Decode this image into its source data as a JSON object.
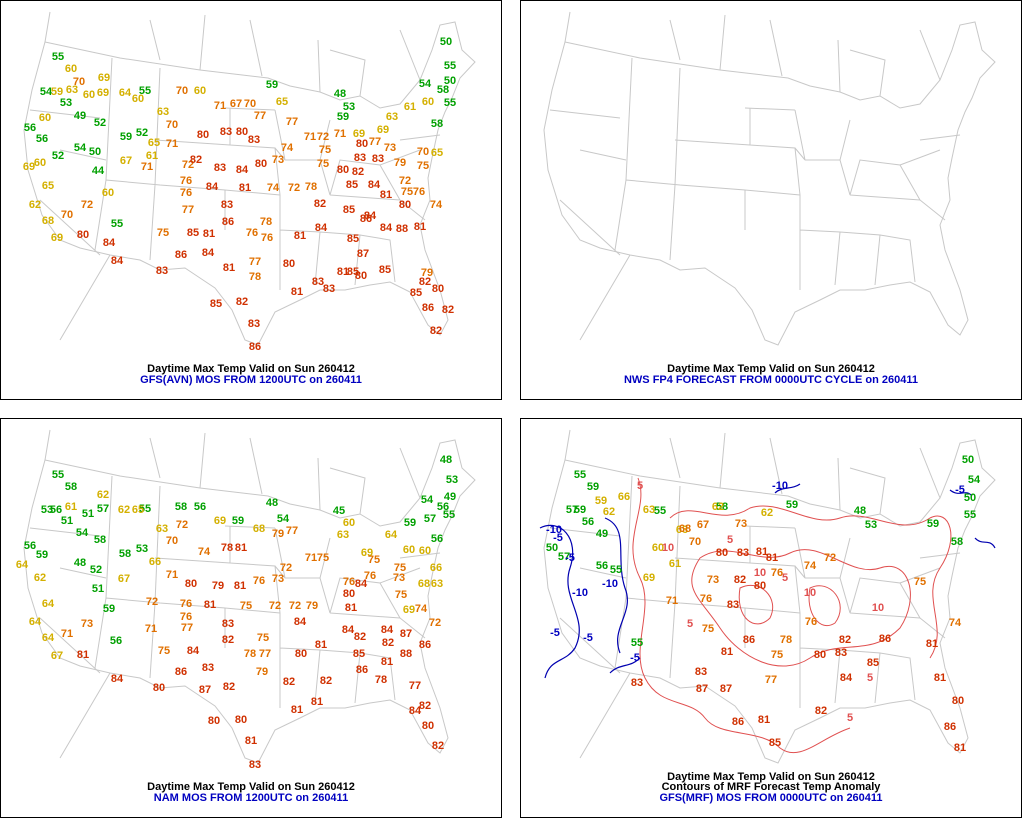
{
  "panels": [
    {
      "title": "Daytime Max Temp Valid on Sun 260412",
      "subtitle": "GFS(AVN) MOS FROM 1200UTC on 260411",
      "stations": [
        {
          "color": "#00a000",
          "values": [
            55,
            54,
            53,
            49,
            52,
            56,
            56,
            52,
            54,
            50,
            44,
            59,
            52,
            55,
            55,
            59,
            48,
            53,
            59,
            50,
            55,
            54,
            50,
            58,
            55,
            58
          ]
        },
        {
          "color": "#d4b000",
          "values": [
            60,
            59,
            63,
            60,
            69,
            69,
            64,
            60,
            63,
            60,
            60,
            60,
            69,
            65,
            62,
            68,
            69,
            60,
            65,
            61,
            67,
            65,
            61,
            63,
            60,
            69,
            69,
            65
          ]
        },
        {
          "color": "#e07000",
          "values": [
            70,
            70,
            71,
            67,
            70,
            77,
            70,
            71,
            72,
            76,
            76,
            77,
            72,
            70,
            71,
            74,
            73,
            72,
            78,
            77,
            71,
            72,
            75,
            75,
            71,
            77,
            73,
            79,
            75,
            76,
            75,
            72,
            74,
            70,
            78,
            76,
            76,
            75,
            77,
            78,
            79,
            74
          ]
        },
        {
          "color": "#d03000",
          "values": [
            80,
            83,
            80,
            83,
            82,
            83,
            84,
            80,
            84,
            81,
            83,
            86,
            85,
            81,
            84,
            80,
            84,
            83,
            86,
            84,
            81,
            80,
            81,
            84,
            82,
            85,
            86,
            85,
            87,
            84,
            84,
            85,
            80,
            81,
            88,
            85,
            81,
            80,
            83,
            83,
            81,
            82,
            80,
            85,
            86,
            82,
            82,
            85,
            82,
            83,
            86,
            80,
            82,
            84,
            85,
            83,
            80,
            83,
            81
          ]
        }
      ]
    },
    {
      "title": "Daytime Max Temp Valid on Sun 260412",
      "subtitle": "NWS FP4 FORECAST FROM 0000UTC CYCLE on 260411",
      "stations": []
    },
    {
      "title": "Daytime Max Temp Valid on Sun 260412",
      "subtitle": "NAM MOS FROM 1200UTC on 260411",
      "stations": [
        {
          "color": "#00a000",
          "values": [
            55,
            58,
            53,
            56,
            51,
            54,
            58,
            56,
            59,
            48,
            52,
            51,
            58,
            53,
            57,
            51,
            55,
            58,
            56,
            59,
            48,
            54,
            59,
            56,
            45,
            48,
            53,
            54,
            49,
            56,
            57,
            55,
            59,
            56
          ]
        },
        {
          "color": "#d4b000",
          "values": [
            61,
            62,
            62,
            65,
            64,
            62,
            64,
            64,
            64,
            67,
            63,
            69,
            68,
            67,
            66,
            60,
            63,
            69,
            64,
            60,
            60,
            66,
            63,
            68,
            69
          ]
        },
        {
          "color": "#e07000",
          "values": [
            72,
            70,
            74,
            71,
            72,
            76,
            76,
            77,
            73,
            71,
            79,
            77,
            71,
            75,
            72,
            73,
            76,
            72,
            72,
            75,
            75,
            78,
            75,
            71,
            77,
            74,
            72,
            79,
            76,
            75,
            76,
            75,
            73,
            75,
            79
          ]
        },
        {
          "color": "#d03000",
          "values": [
            78,
            81,
            80,
            79,
            81,
            81,
            83,
            82,
            84,
            81,
            84,
            80,
            86,
            83,
            87,
            82,
            80,
            80,
            81,
            83,
            82,
            81,
            82,
            81,
            81,
            80,
            84,
            82,
            84,
            85,
            86,
            82,
            84,
            87,
            88,
            81,
            86,
            78,
            77,
            82,
            84,
            80,
            82,
            84,
            81,
            80
          ]
        }
      ]
    },
    {
      "title": "Daytime Max Temp Valid on Sun 260412",
      "subtitle": "Contours of MRF Forecast Temp Anomaly",
      "subtitle2": "GFS(MRF) MOS FROM 0000UTC on 260411",
      "stations": [
        {
          "color": "#00a000",
          "values": [
            55,
            59,
            57,
            59,
            56,
            49,
            50,
            57,
            56,
            55,
            55,
            55,
            58,
            59,
            48,
            53,
            59,
            50,
            54,
            50,
            55,
            58
          ]
        },
        {
          "color": "#d4b000",
          "values": [
            59,
            62,
            66,
            63,
            60,
            69,
            61,
            62,
            62,
            63
          ]
        },
        {
          "color": "#e07000",
          "values": [
            68,
            67,
            70,
            73,
            76,
            75,
            71,
            73,
            72,
            76,
            74,
            77,
            75,
            78,
            76,
            74,
            75
          ]
        },
        {
          "color": "#d03000",
          "values": [
            80,
            81,
            83,
            81,
            82,
            83,
            80,
            86,
            81,
            83,
            83,
            87,
            87,
            81,
            82,
            85,
            86,
            83,
            84,
            85,
            86,
            81,
            80,
            81,
            86,
            81,
            82,
            80
          ]
        },
        {
          "color": "#0000c0",
          "values": [
            -10,
            -5,
            -5,
            -10,
            -5,
            -10,
            -5,
            -5,
            -10,
            -5
          ]
        },
        {
          "color": "#e05050",
          "values": [
            5,
            10,
            5,
            10,
            5,
            5,
            10,
            5,
            5,
            10
          ]
        }
      ]
    }
  ]
}
